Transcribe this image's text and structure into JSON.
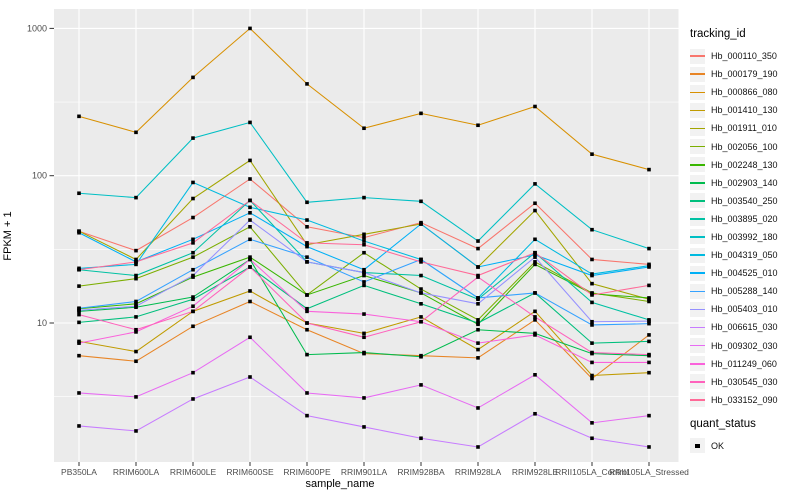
{
  "chart_data": {
    "type": "line",
    "title": "",
    "xlabel": "sample_name",
    "ylabel": "FPKM + 1",
    "y_scale": "log10",
    "grid": true,
    "panel_bg": "#EBEBEB",
    "grid_color": "#FFFFFF",
    "tick_label_color": "#4D4D4D",
    "tick_mark_color": "#333333",
    "point_style": {
      "shape": "square",
      "color": "#000000",
      "size": 3.6
    },
    "y_ticks": [
      10,
      100,
      1000
    ],
    "y_minor_ticks": [
      3.1623,
      31.623,
      316.23
    ],
    "ylim": [
      1.15,
      1330
    ],
    "legend_position": "right",
    "categories": [
      "PB350LA",
      "RRIM600LA",
      "RRIM600LE",
      "RRIM600SE",
      "RRIM600PE",
      "RRIM901LA",
      "RRIM928BA",
      "RRIM928LA",
      "RRIM928LE",
      "RRII105LA_Control",
      "RRII105LA_Stressed"
    ],
    "series": [
      {
        "name": "Hb_000110_350",
        "color": "#F8766D",
        "values": [
          42,
          31,
          52,
          95,
          45,
          38,
          48,
          32,
          65,
          27,
          25
        ]
      },
      {
        "name": "Hb_000179_190",
        "color": "#E88526",
        "values": [
          6.0,
          5.5,
          9.5,
          14,
          9.0,
          6.2,
          6.0,
          5.8,
          10.5,
          4.2,
          8.3
        ]
      },
      {
        "name": "Hb_000866_080",
        "color": "#D89000",
        "values": [
          253,
          197,
          465,
          1000,
          420,
          210,
          265,
          220,
          295,
          140,
          110
        ]
      },
      {
        "name": "Hb_001410_130",
        "color": "#C09B00",
        "values": [
          7.5,
          6.4,
          12,
          16.5,
          10,
          8.5,
          11,
          6.6,
          12,
          4.4,
          4.6
        ]
      },
      {
        "name": "Hb_001911_010",
        "color": "#A3A500",
        "values": [
          42,
          27,
          70,
          127,
          34,
          40,
          47,
          24,
          58,
          18.5,
          14.5
        ]
      },
      {
        "name": "Hb_002056_100",
        "color": "#7CAE00",
        "values": [
          17.8,
          20,
          28,
          45,
          15.5,
          30,
          17,
          10.5,
          26,
          16,
          14
        ]
      },
      {
        "name": "Hb_002248_130",
        "color": "#39B600",
        "values": [
          12.5,
          13.5,
          20.5,
          28,
          15.5,
          21,
          16,
          9.8,
          25,
          15.8,
          14.8
        ]
      },
      {
        "name": "Hb_002903_140",
        "color": "#00BB4E",
        "values": [
          12,
          12.8,
          15,
          27,
          6.1,
          6.3,
          5.9,
          9.0,
          8.5,
          6.2,
          6.0
        ]
      },
      {
        "name": "Hb_003540_250",
        "color": "#00BF7D",
        "values": [
          10.1,
          11,
          14.5,
          24,
          12.5,
          18,
          13.5,
          10,
          16,
          7.3,
          7.5
        ]
      },
      {
        "name": "Hb_003895_020",
        "color": "#00C1A3",
        "values": [
          23,
          21,
          30,
          68,
          26,
          22,
          21,
          14.5,
          30,
          13.8,
          10.5
        ]
      },
      {
        "name": "Hb_003992_180",
        "color": "#00BFC4",
        "values": [
          76,
          71,
          180,
          230,
          66,
          71,
          67,
          36,
          88,
          43,
          32
        ]
      },
      {
        "name": "Hb_004319_050",
        "color": "#00BAE0",
        "values": [
          23.5,
          25,
          90,
          61,
          50,
          36,
          27,
          14.8,
          37,
          21.5,
          24.5
        ]
      },
      {
        "name": "Hb_004525_010",
        "color": "#00B0F6",
        "values": [
          41,
          26,
          37,
          56,
          33,
          23,
          47,
          24,
          29,
          21,
          24
        ]
      },
      {
        "name": "Hb_005288_140",
        "color": "#35A2FF",
        "values": [
          12.6,
          14,
          23,
          37,
          28,
          19,
          27,
          14.8,
          16,
          9.7,
          9.9
        ]
      },
      {
        "name": "Hb_005403_010",
        "color": "#9590FF",
        "values": [
          12.2,
          13,
          21,
          50,
          26,
          22,
          16,
          13.5,
          28,
          10.2,
          10.3
        ]
      },
      {
        "name": "Hb_006615_030",
        "color": "#C77CFF",
        "values": [
          2.0,
          1.85,
          3.05,
          4.3,
          2.35,
          1.97,
          1.65,
          1.44,
          2.42,
          1.65,
          1.44
        ]
      },
      {
        "name": "Hb_009302_030",
        "color": "#E76BF3",
        "values": [
          3.35,
          3.15,
          4.6,
          8.0,
          3.35,
          3.1,
          3.8,
          2.65,
          4.45,
          2.1,
          2.35
        ]
      },
      {
        "name": "Hb_011249_060",
        "color": "#FA62DB",
        "values": [
          7.3,
          8.7,
          13,
          27,
          12,
          11.5,
          10.2,
          7.3,
          8.3,
          5.4,
          5.4
        ]
      },
      {
        "name": "Hb_030545_030",
        "color": "#FF62BC",
        "values": [
          11.4,
          9.0,
          12,
          24,
          10,
          8.0,
          10.2,
          20.5,
          11,
          6.3,
          6.1
        ]
      },
      {
        "name": "Hb_033152_090",
        "color": "#FF6A98",
        "values": [
          23,
          26,
          35,
          68,
          35,
          34,
          26,
          21,
          30,
          15.5,
          18
        ]
      }
    ],
    "legend": {
      "title": "tracking_id",
      "quant": {
        "title": "quant_status",
        "items": [
          {
            "label": "OK",
            "symbol": "black-square-point"
          }
        ]
      }
    }
  }
}
